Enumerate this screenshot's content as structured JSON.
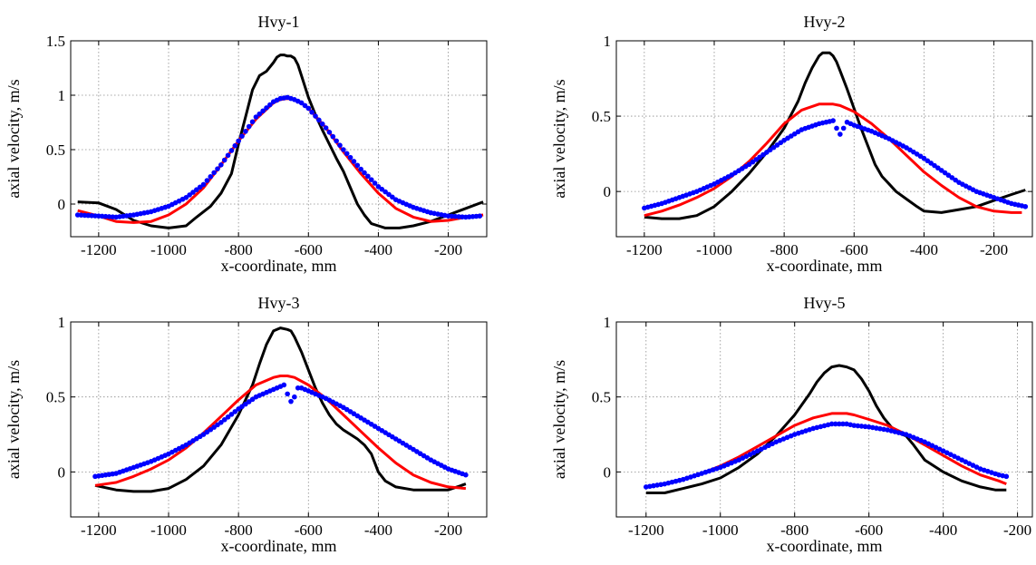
{
  "chart_data": [
    {
      "type": "line",
      "title": "Hvy-1",
      "xlabel": "x-coordinate, mm",
      "ylabel": "axial velocity, m/s",
      "xlim": [
        -1280,
        -90
      ],
      "ylim": [
        -0.3,
        1.5
      ],
      "xticks": [
        -1200,
        -1000,
        -800,
        -600,
        -400,
        -200
      ],
      "yticks": [
        0,
        0.5,
        1,
        1.5
      ],
      "ytick_labels": [
        "0",
        "0.5",
        "1",
        "1.5"
      ],
      "grid": true,
      "series": [
        {
          "color": "#000000",
          "style": "solid",
          "x": [
            -1260,
            -1200,
            -1150,
            -1100,
            -1050,
            -1000,
            -950,
            -920,
            -880,
            -850,
            -820,
            -800,
            -780,
            -760,
            -740,
            -720,
            -700,
            -690,
            -680,
            -670,
            -660,
            -650,
            -640,
            -630,
            -620,
            -600,
            -580,
            -560,
            -540,
            -520,
            -500,
            -480,
            -460,
            -440,
            -420,
            -400,
            -380,
            -340,
            -300,
            -250,
            -200,
            -150,
            -100
          ],
          "y": [
            0.02,
            0.01,
            -0.05,
            -0.15,
            -0.2,
            -0.22,
            -0.2,
            -0.12,
            -0.02,
            0.1,
            0.28,
            0.55,
            0.8,
            1.05,
            1.18,
            1.22,
            1.3,
            1.35,
            1.37,
            1.37,
            1.36,
            1.36,
            1.34,
            1.28,
            1.18,
            0.98,
            0.82,
            0.68,
            0.55,
            0.42,
            0.3,
            0.15,
            0.0,
            -0.1,
            -0.18,
            -0.2,
            -0.22,
            -0.22,
            -0.2,
            -0.16,
            -0.1,
            -0.04,
            0.02
          ]
        },
        {
          "color": "#ff0000",
          "style": "solid",
          "x": [
            -1260,
            -1200,
            -1150,
            -1100,
            -1050,
            -1000,
            -950,
            -900,
            -850,
            -800,
            -750,
            -700,
            -680,
            -660,
            -640,
            -620,
            -600,
            -550,
            -500,
            -450,
            -400,
            -350,
            -300,
            -250,
            -200,
            -150,
            -100
          ],
          "y": [
            -0.06,
            -0.11,
            -0.16,
            -0.17,
            -0.16,
            -0.1,
            0.0,
            0.15,
            0.36,
            0.58,
            0.78,
            0.93,
            0.96,
            0.97,
            0.96,
            0.93,
            0.88,
            0.7,
            0.48,
            0.28,
            0.1,
            -0.04,
            -0.12,
            -0.16,
            -0.15,
            -0.12,
            -0.1
          ]
        },
        {
          "color": "#0000ff",
          "style": "dots",
          "x": [
            -1260,
            -1200,
            -1150,
            -1100,
            -1050,
            -1000,
            -950,
            -900,
            -850,
            -800,
            -750,
            -700,
            -680,
            -660,
            -640,
            -620,
            -600,
            -550,
            -500,
            -450,
            -400,
            -350,
            -300,
            -250,
            -200,
            -150,
            -110
          ],
          "y": [
            -0.1,
            -0.11,
            -0.12,
            -0.1,
            -0.07,
            -0.02,
            0.06,
            0.18,
            0.36,
            0.58,
            0.8,
            0.94,
            0.97,
            0.98,
            0.96,
            0.93,
            0.88,
            0.7,
            0.5,
            0.32,
            0.16,
            0.04,
            -0.03,
            -0.08,
            -0.11,
            -0.12,
            -0.11
          ]
        }
      ]
    },
    {
      "type": "line",
      "title": "Hvy-2",
      "xlabel": "x-coordinate, mm",
      "ylabel": "axial velocity, m/s",
      "xlim": [
        -1280,
        -90
      ],
      "ylim": [
        -0.3,
        1.0
      ],
      "xticks": [
        -1200,
        -1000,
        -800,
        -600,
        -400,
        -200
      ],
      "yticks": [
        0,
        0.5,
        1
      ],
      "ytick_labels": [
        "0",
        "0.5",
        "1"
      ],
      "grid": true,
      "series": [
        {
          "color": "#000000",
          "style": "solid",
          "x": [
            -1200,
            -1150,
            -1100,
            -1050,
            -1000,
            -950,
            -900,
            -850,
            -800,
            -760,
            -740,
            -720,
            -700,
            -690,
            -680,
            -670,
            -660,
            -650,
            -640,
            -620,
            -600,
            -580,
            -560,
            -540,
            -520,
            -500,
            -480,
            -450,
            -420,
            -400,
            -350,
            -300,
            -250,
            -200,
            -150,
            -110
          ],
          "y": [
            -0.17,
            -0.18,
            -0.18,
            -0.16,
            -0.1,
            0.0,
            0.12,
            0.26,
            0.42,
            0.6,
            0.72,
            0.82,
            0.9,
            0.92,
            0.92,
            0.92,
            0.9,
            0.86,
            0.8,
            0.68,
            0.55,
            0.42,
            0.3,
            0.18,
            0.1,
            0.05,
            0.0,
            -0.05,
            -0.1,
            -0.13,
            -0.14,
            -0.12,
            -0.1,
            -0.06,
            -0.02,
            0.01
          ]
        },
        {
          "color": "#ff0000",
          "style": "solid",
          "x": [
            -1200,
            -1150,
            -1100,
            -1050,
            -1000,
            -950,
            -900,
            -850,
            -800,
            -750,
            -700,
            -680,
            -660,
            -640,
            -600,
            -550,
            -500,
            -450,
            -400,
            -350,
            -300,
            -250,
            -200,
            -150,
            -120
          ],
          "y": [
            -0.16,
            -0.13,
            -0.09,
            -0.04,
            0.02,
            0.1,
            0.2,
            0.32,
            0.45,
            0.54,
            0.58,
            0.58,
            0.58,
            0.57,
            0.53,
            0.45,
            0.35,
            0.24,
            0.13,
            0.04,
            -0.04,
            -0.1,
            -0.13,
            -0.14,
            -0.14
          ]
        },
        {
          "color": "#0000ff",
          "style": "dots",
          "x": [
            -1200,
            -1150,
            -1100,
            -1050,
            -1000,
            -950,
            -900,
            -850,
            -800,
            -750,
            -700,
            -680,
            -660,
            -650,
            -640,
            -630,
            -620,
            -600,
            -550,
            -500,
            -450,
            -400,
            -350,
            -300,
            -250,
            -200,
            -150,
            -110
          ],
          "y": [
            -0.11,
            -0.08,
            -0.04,
            0.0,
            0.05,
            0.11,
            0.18,
            0.26,
            0.34,
            0.41,
            0.45,
            0.46,
            0.47,
            0.42,
            0.38,
            0.42,
            0.46,
            0.44,
            0.4,
            0.35,
            0.29,
            0.22,
            0.14,
            0.06,
            0.0,
            -0.04,
            -0.08,
            -0.1
          ]
        }
      ]
    },
    {
      "type": "line",
      "title": "Hvy-3",
      "xlabel": "x-coordinate, mm",
      "ylabel": "axial velocity, m/s",
      "xlim": [
        -1280,
        -90
      ],
      "ylim": [
        -0.3,
        1.0
      ],
      "xticks": [
        -1200,
        -1000,
        -800,
        -600,
        -400,
        -200
      ],
      "yticks": [
        0,
        0.5,
        1
      ],
      "ytick_labels": [
        "0",
        "0.5",
        "1"
      ],
      "grid": true,
      "series": [
        {
          "color": "#000000",
          "style": "solid",
          "x": [
            -1210,
            -1150,
            -1100,
            -1050,
            -1000,
            -950,
            -900,
            -850,
            -800,
            -760,
            -740,
            -720,
            -700,
            -680,
            -660,
            -650,
            -640,
            -620,
            -600,
            -580,
            -560,
            -540,
            -520,
            -500,
            -480,
            -460,
            -440,
            -420,
            -400,
            -380,
            -350,
            -300,
            -250,
            -200,
            -150
          ],
          "y": [
            -0.09,
            -0.12,
            -0.13,
            -0.13,
            -0.11,
            -0.05,
            0.04,
            0.18,
            0.38,
            0.58,
            0.72,
            0.85,
            0.94,
            0.96,
            0.95,
            0.94,
            0.9,
            0.8,
            0.68,
            0.56,
            0.46,
            0.38,
            0.32,
            0.28,
            0.25,
            0.22,
            0.18,
            0.12,
            0.0,
            -0.06,
            -0.1,
            -0.12,
            -0.12,
            -0.12,
            -0.08
          ]
        },
        {
          "color": "#ff0000",
          "style": "solid",
          "x": [
            -1210,
            -1150,
            -1100,
            -1050,
            -1000,
            -950,
            -900,
            -850,
            -800,
            -750,
            -700,
            -680,
            -660,
            -640,
            -600,
            -550,
            -500,
            -450,
            -400,
            -350,
            -300,
            -250,
            -200,
            -150
          ],
          "y": [
            -0.09,
            -0.07,
            -0.03,
            0.02,
            0.08,
            0.16,
            0.26,
            0.37,
            0.48,
            0.58,
            0.63,
            0.64,
            0.64,
            0.63,
            0.58,
            0.49,
            0.38,
            0.27,
            0.16,
            0.06,
            -0.02,
            -0.07,
            -0.1,
            -0.11
          ]
        },
        {
          "color": "#0000ff",
          "style": "dots",
          "x": [
            -1210,
            -1150,
            -1100,
            -1050,
            -1000,
            -950,
            -900,
            -850,
            -800,
            -750,
            -700,
            -680,
            -670,
            -660,
            -650,
            -640,
            -630,
            -620,
            -600,
            -550,
            -500,
            -450,
            -400,
            -350,
            -300,
            -250,
            -200,
            -150
          ],
          "y": [
            -0.03,
            -0.01,
            0.03,
            0.07,
            0.12,
            0.18,
            0.25,
            0.33,
            0.42,
            0.5,
            0.55,
            0.57,
            0.58,
            0.52,
            0.47,
            0.5,
            0.56,
            0.56,
            0.54,
            0.49,
            0.43,
            0.36,
            0.29,
            0.22,
            0.15,
            0.08,
            0.02,
            -0.02
          ]
        }
      ]
    },
    {
      "type": "line",
      "title": "Hvy-5",
      "xlabel": "x-coordinate, mm",
      "ylabel": "axial velocity, m/s",
      "xlim": [
        -1280,
        -160
      ],
      "ylim": [
        -0.3,
        1.0
      ],
      "xticks": [
        -1200,
        -1000,
        -800,
        -600,
        -400,
        -200
      ],
      "yticks": [
        0,
        0.5,
        1
      ],
      "ytick_labels": [
        "0",
        "0.5",
        "1"
      ],
      "grid": true,
      "series": [
        {
          "color": "#000000",
          "style": "solid",
          "x": [
            -1200,
            -1150,
            -1100,
            -1050,
            -1000,
            -950,
            -900,
            -850,
            -800,
            -760,
            -740,
            -720,
            -700,
            -680,
            -660,
            -640,
            -620,
            -600,
            -580,
            -560,
            -540,
            -520,
            -500,
            -480,
            -450,
            -400,
            -350,
            -300,
            -260,
            -230
          ],
          "y": [
            -0.14,
            -0.14,
            -0.11,
            -0.08,
            -0.04,
            0.03,
            0.12,
            0.24,
            0.38,
            0.52,
            0.6,
            0.66,
            0.7,
            0.71,
            0.7,
            0.68,
            0.62,
            0.54,
            0.44,
            0.36,
            0.3,
            0.26,
            0.24,
            0.18,
            0.08,
            0.0,
            -0.06,
            -0.1,
            -0.12,
            -0.12
          ]
        },
        {
          "color": "#ff0000",
          "style": "solid",
          "x": [
            -1200,
            -1150,
            -1100,
            -1050,
            -1000,
            -950,
            -900,
            -850,
            -800,
            -750,
            -700,
            -680,
            -660,
            -640,
            -600,
            -550,
            -500,
            -450,
            -400,
            -350,
            -300,
            -250,
            -230
          ],
          "y": [
            -0.1,
            -0.08,
            -0.05,
            -0.01,
            0.04,
            0.1,
            0.17,
            0.24,
            0.31,
            0.36,
            0.39,
            0.39,
            0.39,
            0.38,
            0.35,
            0.31,
            0.25,
            0.18,
            0.11,
            0.04,
            -0.02,
            -0.06,
            -0.08
          ]
        },
        {
          "color": "#0000ff",
          "style": "dots",
          "x": [
            -1200,
            -1150,
            -1100,
            -1050,
            -1000,
            -950,
            -900,
            -850,
            -800,
            -750,
            -700,
            -680,
            -660,
            -640,
            -600,
            -550,
            -500,
            -450,
            -400,
            -350,
            -300,
            -250,
            -230
          ],
          "y": [
            -0.1,
            -0.08,
            -0.05,
            -0.01,
            0.03,
            0.08,
            0.14,
            0.2,
            0.25,
            0.29,
            0.32,
            0.32,
            0.32,
            0.31,
            0.3,
            0.28,
            0.25,
            0.2,
            0.14,
            0.08,
            0.02,
            -0.02,
            -0.03
          ]
        }
      ]
    }
  ]
}
